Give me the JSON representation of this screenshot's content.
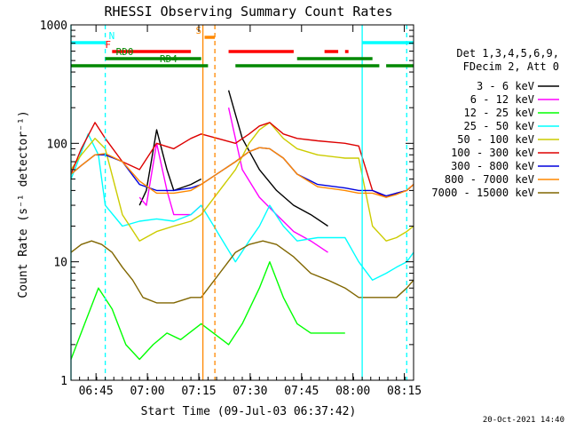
{
  "chart_data": {
    "type": "line",
    "title": "RHESSI Observing Summary Count Rates",
    "xlabel": "Start Time (09-Jul-03 06:37:42)",
    "ylabel": "Count Rate (s⁻¹ detector⁻¹)",
    "y_scale": "log",
    "ylim": [
      1,
      1000
    ],
    "xlim_minutes": [
      0,
      100
    ],
    "x_tick_labels": [
      "06:45",
      "07:00",
      "07:15",
      "07:30",
      "07:45",
      "08:00",
      "08:15"
    ],
    "x_tick_minutes": [
      7.3,
      22.3,
      37.3,
      52.3,
      67.3,
      82.3,
      97.3
    ],
    "y_tick_labels": [
      "1",
      "10",
      "100",
      "1000"
    ],
    "y_tick_values": [
      1,
      10,
      100,
      1000
    ],
    "detector_info": [
      "Det 1,3,4,5,6,9,",
      "FDecim 2, Att 0"
    ],
    "date_stamp": "20-Oct-2021 14:40",
    "series": [
      {
        "name": "3 - 6 keV",
        "color": "#000000",
        "x": [
          0,
          5,
          10,
          15,
          20,
          22,
          25,
          28,
          30,
          35,
          38,
          40,
          46,
          50,
          55,
          60,
          65,
          70,
          75,
          80,
          82
        ],
        "y": [
          null,
          null,
          null,
          null,
          30,
          40,
          130,
          60,
          40,
          45,
          50,
          null,
          280,
          110,
          60,
          40,
          30,
          25,
          20,
          null,
          null
        ]
      },
      {
        "name": "6 - 12 keV",
        "color": "#ff00ff",
        "x": [
          0,
          5,
          10,
          15,
          20,
          22,
          25,
          28,
          30,
          35,
          38,
          40,
          46,
          50,
          55,
          60,
          65,
          70,
          75,
          80,
          82
        ],
        "y": [
          null,
          null,
          null,
          null,
          35,
          30,
          100,
          40,
          25,
          25,
          30,
          null,
          200,
          60,
          35,
          25,
          18,
          15,
          12,
          null,
          null
        ]
      },
      {
        "name": "12 - 25 keV",
        "color": "#00ff00",
        "x": [
          0,
          4,
          8,
          12,
          16,
          20,
          24,
          28,
          32,
          38,
          46,
          50,
          55,
          58,
          62,
          66,
          70,
          75,
          80
        ],
        "y": [
          1.5,
          3,
          6,
          4,
          2,
          1.5,
          2,
          2.5,
          2.2,
          3,
          2,
          3,
          6,
          10,
          5,
          3,
          2.5,
          2.5,
          2.5
        ]
      },
      {
        "name": "25 - 50 keV",
        "color": "#00ffff",
        "x": [
          0,
          2,
          5,
          8,
          10,
          15,
          20,
          25,
          30,
          35,
          38,
          48,
          52,
          55,
          58,
          62,
          66,
          72,
          80,
          84,
          88,
          92,
          95,
          98,
          100
        ],
        "y": [
          50,
          70,
          120,
          80,
          30,
          20,
          22,
          23,
          22,
          25,
          30,
          10,
          15,
          20,
          30,
          20,
          15,
          16,
          16,
          10,
          7,
          8,
          9,
          10,
          12
        ]
      },
      {
        "name": "50 - 100 keV",
        "color": "#cccc00",
        "x": [
          0,
          3,
          7,
          10,
          15,
          20,
          25,
          30,
          35,
          38,
          48,
          52,
          55,
          58,
          62,
          66,
          72,
          80,
          84,
          88,
          92,
          95,
          98,
          100
        ],
        "y": [
          60,
          80,
          110,
          90,
          25,
          15,
          18,
          20,
          22,
          25,
          60,
          100,
          130,
          150,
          110,
          90,
          80,
          75,
          75,
          20,
          15,
          16,
          18,
          20
        ]
      },
      {
        "name": "100 - 300 keV",
        "color": "#dd0000",
        "x": [
          0,
          3,
          7,
          10,
          15,
          20,
          25,
          30,
          35,
          38,
          48,
          52,
          55,
          58,
          62,
          66,
          72,
          80,
          84,
          88,
          92,
          95,
          98,
          100
        ],
        "y": [
          55,
          90,
          150,
          110,
          70,
          60,
          100,
          90,
          110,
          120,
          100,
          120,
          140,
          150,
          120,
          110,
          105,
          100,
          95,
          40,
          35,
          38,
          40,
          45
        ]
      },
      {
        "name": "300 - 800 keV",
        "color": "#0000dd",
        "x": [
          0,
          3,
          7,
          10,
          15,
          20,
          25,
          30,
          35,
          38,
          48,
          52,
          55,
          58,
          62,
          66,
          72,
          80,
          84,
          88,
          92,
          95,
          98,
          100
        ],
        "y": [
          55,
          65,
          80,
          80,
          70,
          45,
          40,
          40,
          42,
          45,
          70,
          85,
          92,
          90,
          75,
          55,
          45,
          42,
          40,
          40,
          36,
          38,
          40,
          45
        ]
      },
      {
        "name": "800 - 7000 keV",
        "color": "#ff8800",
        "x": [
          0,
          3,
          7,
          10,
          15,
          20,
          25,
          30,
          35,
          38,
          48,
          52,
          55,
          58,
          62,
          66,
          72,
          80,
          84,
          88,
          92,
          95,
          98,
          100
        ],
        "y": [
          55,
          65,
          80,
          82,
          70,
          48,
          38,
          38,
          40,
          45,
          70,
          85,
          92,
          90,
          75,
          55,
          43,
          40,
          38,
          38,
          35,
          37,
          40,
          45
        ]
      },
      {
        "name": "7000 - 15000 keV",
        "color": "#806600",
        "x": [
          0,
          3,
          6,
          9,
          12,
          15,
          18,
          21,
          25,
          30,
          35,
          38,
          48,
          52,
          56,
          60,
          65,
          70,
          75,
          80,
          84,
          88,
          92,
          95,
          98,
          100
        ],
        "y": [
          12,
          14,
          15,
          14,
          12,
          9,
          7,
          5,
          4.5,
          4.5,
          5,
          5,
          12,
          14,
          15,
          14,
          11,
          8,
          7,
          6,
          5,
          5,
          5,
          5,
          6,
          7
        ]
      }
    ],
    "status_bars": [
      {
        "label": "N",
        "color": "#00ffff",
        "segments": [
          [
            0,
            10
          ],
          [
            85,
            100
          ]
        ]
      },
      {
        "label": "F",
        "color": "#ff0000",
        "segments": [
          [
            12,
            35
          ],
          [
            46,
            65
          ],
          [
            74,
            78
          ],
          [
            80,
            81
          ]
        ]
      },
      {
        "label": "S",
        "color": "#ff8800",
        "segments": [
          [
            39,
            42
          ]
        ]
      },
      {
        "label": "RD0",
        "color": "#008800",
        "segments": [
          [
            10,
            38
          ],
          [
            66,
            88
          ]
        ]
      },
      {
        "label": "RD4",
        "color": "#008800",
        "segments": [
          [
            0,
            40
          ],
          [
            48,
            90
          ],
          [
            92,
            100
          ]
        ]
      }
    ],
    "vertical_lines": [
      {
        "kind": "solid",
        "color": "#00ffff",
        "x": 0
      },
      {
        "kind": "dashed",
        "color": "#00ffff",
        "x": 10
      },
      {
        "kind": "solid",
        "color": "#ff8800",
        "x": 38.5
      },
      {
        "kind": "dashed",
        "color": "#ff8800",
        "x": 42
      },
      {
        "kind": "solid",
        "color": "#00ffff",
        "x": 85
      },
      {
        "kind": "dashed",
        "color": "#00ffff",
        "x": 98
      }
    ]
  }
}
